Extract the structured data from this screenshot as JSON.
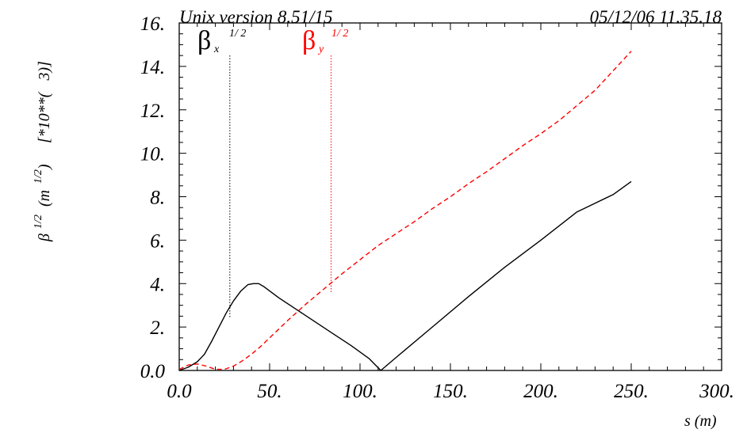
{
  "header": {
    "left": "Unix version 8.51/15",
    "right": "05/12/06  11.35.18"
  },
  "chart_data": {
    "type": "line",
    "xlabel": "s (m)",
    "ylabel": "β^{1/2} (m^{1/2})    [*10**(  3)]",
    "ylabel_parts": {
      "beta": "β",
      "beta_sup": "1/2",
      "unit_open": "(m",
      "unit_sup": "1/2",
      "unit_close": ")",
      "scale": "[*10**(   3)]"
    },
    "xlim": [
      0,
      300
    ],
    "ylim": [
      0,
      16
    ],
    "x_ticks": [
      "0.0",
      "50.",
      "100.",
      "150.",
      "200.",
      "250.",
      "300."
    ],
    "y_ticks": [
      "0.0",
      "2.",
      "4.",
      "6.",
      "8.",
      "10.",
      "12.",
      "14.",
      "16."
    ],
    "grid": false,
    "series": [
      {
        "name": "βx",
        "sup": "1/ 2",
        "sub": "x",
        "color": "#000000",
        "style": "solid",
        "marker_x": 28,
        "x": [
          0,
          5,
          10,
          14,
          18,
          22,
          26,
          30,
          34,
          38,
          41,
          44,
          47,
          55,
          65,
          75,
          85,
          95,
          105,
          111.5,
          120,
          140,
          160,
          180,
          200,
          220,
          240,
          250
        ],
        "y": [
          0.0,
          0.15,
          0.4,
          0.75,
          1.35,
          2.0,
          2.65,
          3.2,
          3.65,
          3.95,
          4.0,
          4.0,
          3.85,
          3.35,
          2.8,
          2.25,
          1.7,
          1.15,
          0.55,
          0.0,
          0.6,
          2.0,
          3.4,
          4.75,
          6.0,
          7.3,
          8.1,
          8.7
        ]
      },
      {
        "name": "βy",
        "sup": "1/ 2",
        "sub": "y",
        "color": "#ff0000",
        "style": "dashed",
        "marker_x": 84,
        "x": [
          0,
          5,
          10,
          15,
          20,
          25,
          30,
          35,
          40,
          45,
          50,
          60,
          70,
          80,
          90,
          100,
          110,
          120,
          130,
          140,
          150,
          160,
          170,
          180,
          190,
          200,
          210,
          220,
          230,
          240,
          250
        ],
        "y": [
          0.05,
          0.25,
          0.3,
          0.2,
          0.05,
          0.05,
          0.2,
          0.45,
          0.75,
          1.1,
          1.5,
          2.3,
          3.05,
          3.75,
          4.45,
          5.1,
          5.75,
          6.3,
          6.85,
          7.45,
          8.0,
          8.6,
          9.15,
          9.75,
          10.35,
          10.9,
          11.5,
          12.2,
          12.9,
          13.8,
          14.7
        ]
      }
    ]
  }
}
